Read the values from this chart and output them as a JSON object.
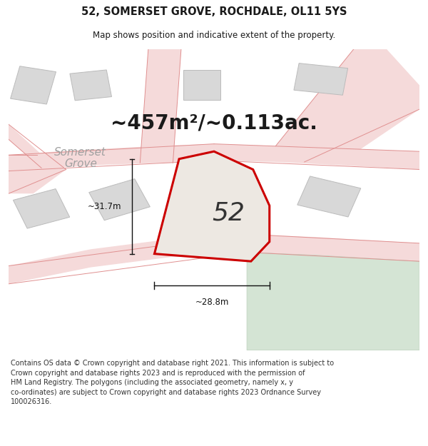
{
  "title": "52, SOMERSET GROVE, ROCHDALE, OL11 5YS",
  "subtitle": "Map shows position and indicative extent of the property.",
  "footer": "Contains OS data © Crown copyright and database right 2021. This information is subject to\nCrown copyright and database rights 2023 and is reproduced with the permission of\nHM Land Registry. The polygons (including the associated geometry, namely x, y\nco-ordinates) are subject to Crown copyright and database rights 2023 Ordnance Survey\n100026316.",
  "area_label": "~457m²/~0.113ac.",
  "number_label": "52",
  "width_label": "~28.8m",
  "height_label": "~31.7m",
  "street_label": "Somerset\nGrove",
  "bg_color": "#ffffff",
  "map_bg": "#f2f2f2",
  "road_fill": "#f5dada",
  "road_edge": "#e8b8b8",
  "building_fill": "#d8d8d8",
  "building_edge": "#bbbbbb",
  "plot_fill": "#ede8e2",
  "plot_edge": "#cc0000",
  "plot_lw": 2.2,
  "green_fill": "#d4e4d4",
  "green_edge": "#bbd0bb",
  "dim_color": "#111111",
  "title_fs": 10.5,
  "subtitle_fs": 8.5,
  "footer_fs": 7.0,
  "area_fs": 20,
  "number_fs": 26,
  "street_fs": 11,
  "dim_fs": 8.5
}
